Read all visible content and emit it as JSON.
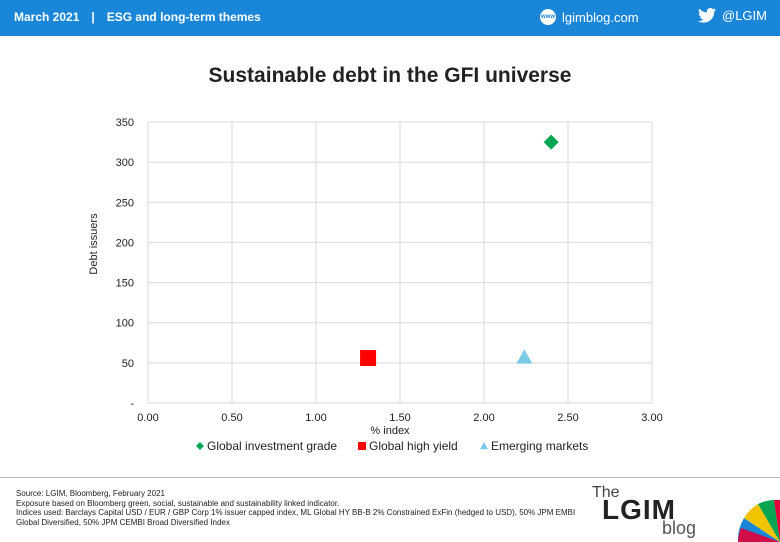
{
  "header": {
    "date": "March 2021",
    "separator": "|",
    "section": "ESG and long-term themes",
    "blog_url": "lgimblog.com",
    "twitter": "@LGIM",
    "globe_icon_text": "www"
  },
  "chart_data": {
    "type": "scatter",
    "title": "Sustainable debt in the GFI universe",
    "xlabel": "% index",
    "ylabel": "Debt issuers",
    "xlim": [
      0,
      3
    ],
    "ylim": [
      0,
      350
    ],
    "x_ticks": [
      "0.00",
      "0.50",
      "1.00",
      "1.50",
      "2.00",
      "2.50",
      "3.00"
    ],
    "x_tick_values": [
      0,
      0.5,
      1,
      1.5,
      2,
      2.5,
      3
    ],
    "y_ticks": [
      "-",
      "50",
      "100",
      "150",
      "200",
      "250",
      "300",
      "350"
    ],
    "y_tick_values": [
      0,
      50,
      100,
      150,
      200,
      250,
      300,
      350
    ],
    "grid": true,
    "legend_position": "bottom",
    "series": [
      {
        "name": "Global investment grade",
        "x": 2.4,
        "y": 325,
        "marker": "diamond",
        "color": "#00a651"
      },
      {
        "name": "Global high yield",
        "x": 1.31,
        "y": 56,
        "marker": "square",
        "color": "#ff0000"
      },
      {
        "name": "Emerging markets",
        "x": 2.24,
        "y": 57,
        "marker": "triangle",
        "color": "#7ec8e8"
      }
    ]
  },
  "footer": {
    "source": "Source: LGIM, Bloomberg, February 2021",
    "exposure": "Exposure based on Bloomberg green, social, sustainable and sustainability linked indicator.",
    "indices": "Indices used: Barclays Capital USD / EUR / GBP Corp 1% issuer capped index, ML Global HY BB-B  2% Constrained ExFin (hedged to USD), 50% JPM EMBI Global Diversified, 50% JPM CEMBI Broad Diversified Index"
  },
  "logo": {
    "the": "The",
    "name": "LGIM",
    "blog": "blog"
  }
}
